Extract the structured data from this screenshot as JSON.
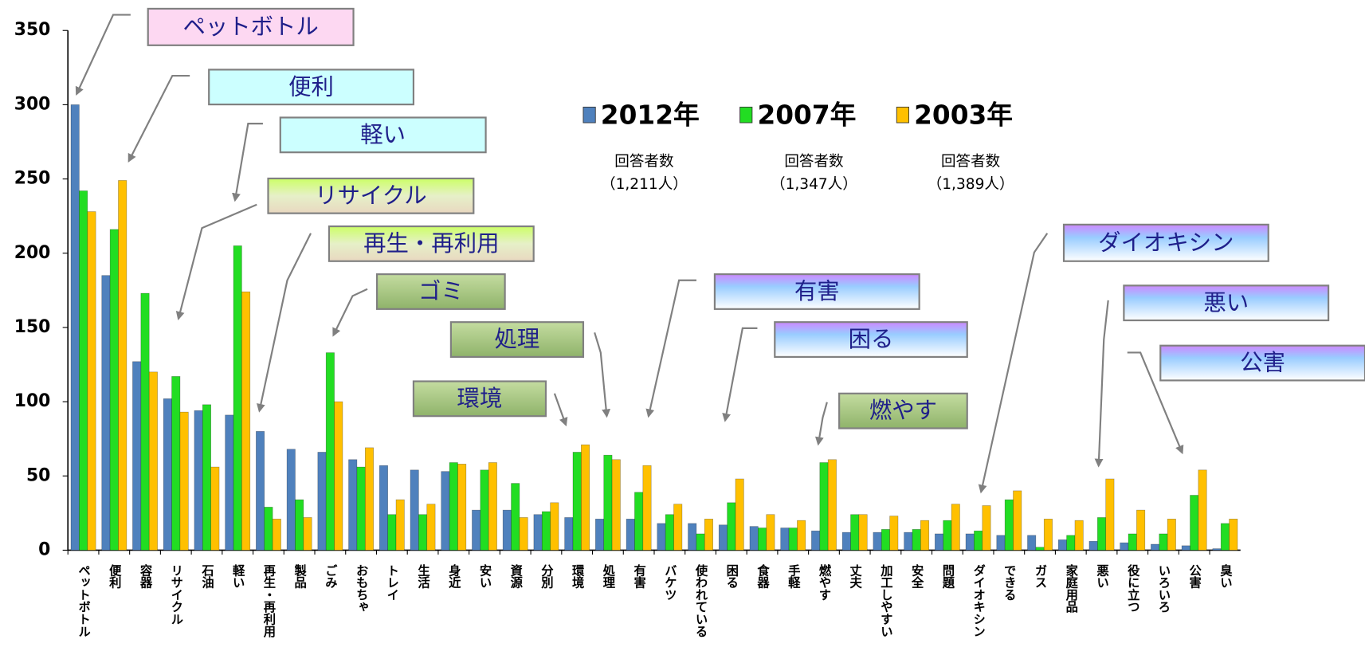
{
  "chart_data": {
    "type": "bar",
    "categories": [
      "ペットボトル",
      "便利",
      "容器",
      "リサイクル",
      "石油",
      "軽い",
      "再生・再利用",
      "製品",
      "ごみ",
      "おもちゃ",
      "トレイ",
      "生活",
      "身近",
      "安い",
      "資源",
      "分別",
      "環境",
      "処理",
      "有害",
      "バケツ",
      "使われている",
      "困る",
      "食器",
      "手軽",
      "燃やす",
      "丈夫",
      "加工しやすい",
      "安全",
      "問題",
      "ダイオキシン",
      "できる",
      "ガス",
      "家庭用品",
      "悪い",
      "役に立つ",
      "いろいろ",
      "公害",
      "臭い"
    ],
    "series": [
      {
        "name": "2012年",
        "color": "#4f81bd",
        "respondents": "（1,211人）",
        "values": [
          300,
          185,
          127,
          102,
          94,
          91,
          80,
          68,
          66,
          61,
          57,
          54,
          53,
          27,
          27,
          24,
          22,
          21,
          21,
          18,
          18,
          17,
          16,
          15,
          13,
          12,
          12,
          12,
          11,
          11,
          10,
          10,
          7,
          6,
          5,
          4,
          3,
          1
        ]
      },
      {
        "name": "2007年",
        "color": "#22dd22",
        "respondents": "（1,347人）",
        "values": [
          242,
          216,
          173,
          117,
          98,
          205,
          29,
          34,
          133,
          56,
          24,
          24,
          59,
          54,
          45,
          26,
          66,
          64,
          39,
          24,
          11,
          32,
          15,
          15,
          59,
          24,
          14,
          14,
          20,
          13,
          34,
          2,
          10,
          22,
          11,
          11,
          37,
          18
        ]
      },
      {
        "name": "2003年",
        "color": "#ffc000",
        "respondents": "（1,389人）",
        "values": [
          228,
          249,
          120,
          93,
          56,
          174,
          21,
          22,
          100,
          69,
          34,
          31,
          58,
          59,
          22,
          32,
          71,
          61,
          57,
          31,
          21,
          48,
          24,
          20,
          61,
          24,
          23,
          20,
          31,
          30,
          40,
          21,
          20,
          48,
          27,
          21,
          54,
          21
        ]
      }
    ],
    "respondents_label": "回答者数",
    "ylim": [
      0,
      350
    ],
    "yticks": [
      0,
      50,
      100,
      150,
      200,
      250,
      300,
      350
    ],
    "grid": false,
    "annotations": [
      "ペットボトル",
      "便利",
      "軽い",
      "リサイクル",
      "再生・再利用",
      "ゴミ",
      "処理",
      "環境",
      "有害",
      "困る",
      "燃やす",
      "ダイオキシン",
      "悪い",
      "公害"
    ]
  }
}
